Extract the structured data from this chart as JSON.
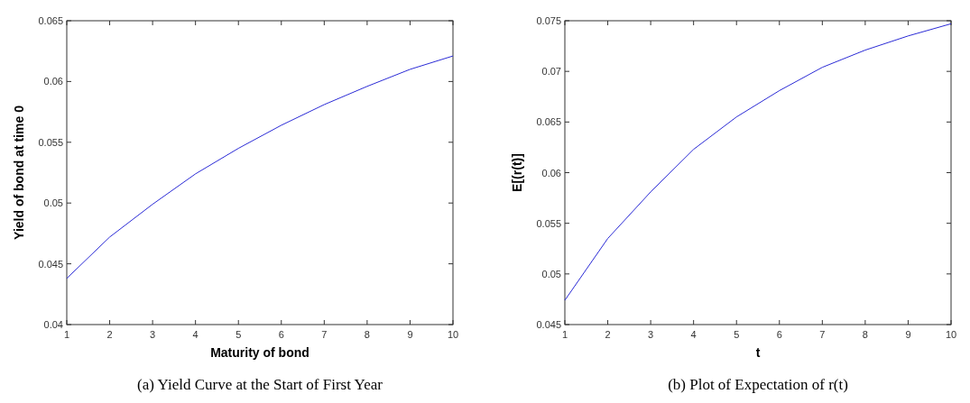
{
  "chart_data": [
    {
      "type": "line",
      "title": "(a) Yield Curve at the Start of First Year",
      "xlabel": "Maturity of bond",
      "ylabel": "Yield of bond at time 0",
      "x": [
        1,
        2,
        3,
        4,
        5,
        6,
        7,
        8,
        9,
        10
      ],
      "series": [
        {
          "color": "#2b2bd6",
          "values": [
            0.0438,
            0.0472,
            0.0499,
            0.0524,
            0.0545,
            0.0564,
            0.0581,
            0.0596,
            0.061,
            0.0621
          ]
        }
      ],
      "xlim": [
        1,
        10
      ],
      "xticks": [
        1,
        2,
        3,
        4,
        5,
        6,
        7,
        8,
        9,
        10
      ],
      "ylim": [
        0.04,
        0.065
      ],
      "yticks": [
        0.04,
        0.045,
        0.05,
        0.055,
        0.06,
        0.065
      ],
      "grid": false
    },
    {
      "type": "line",
      "title": "(b) Plot of Expectation of r(t)",
      "xlabel": "t",
      "ylabel": "E[(r(t)]",
      "x": [
        1,
        2,
        3,
        4,
        5,
        6,
        7,
        8,
        9,
        10
      ],
      "series": [
        {
          "color": "#2b2bd6",
          "values": [
            0.0474,
            0.0535,
            0.0581,
            0.0623,
            0.0655,
            0.0681,
            0.0704,
            0.0721,
            0.0735,
            0.0747
          ]
        }
      ],
      "xlim": [
        1,
        10
      ],
      "xticks": [
        1,
        2,
        3,
        4,
        5,
        6,
        7,
        8,
        9,
        10
      ],
      "ylim": [
        0.045,
        0.075
      ],
      "yticks": [
        0.045,
        0.05,
        0.055,
        0.06,
        0.065,
        0.07,
        0.075
      ],
      "grid": false
    }
  ]
}
